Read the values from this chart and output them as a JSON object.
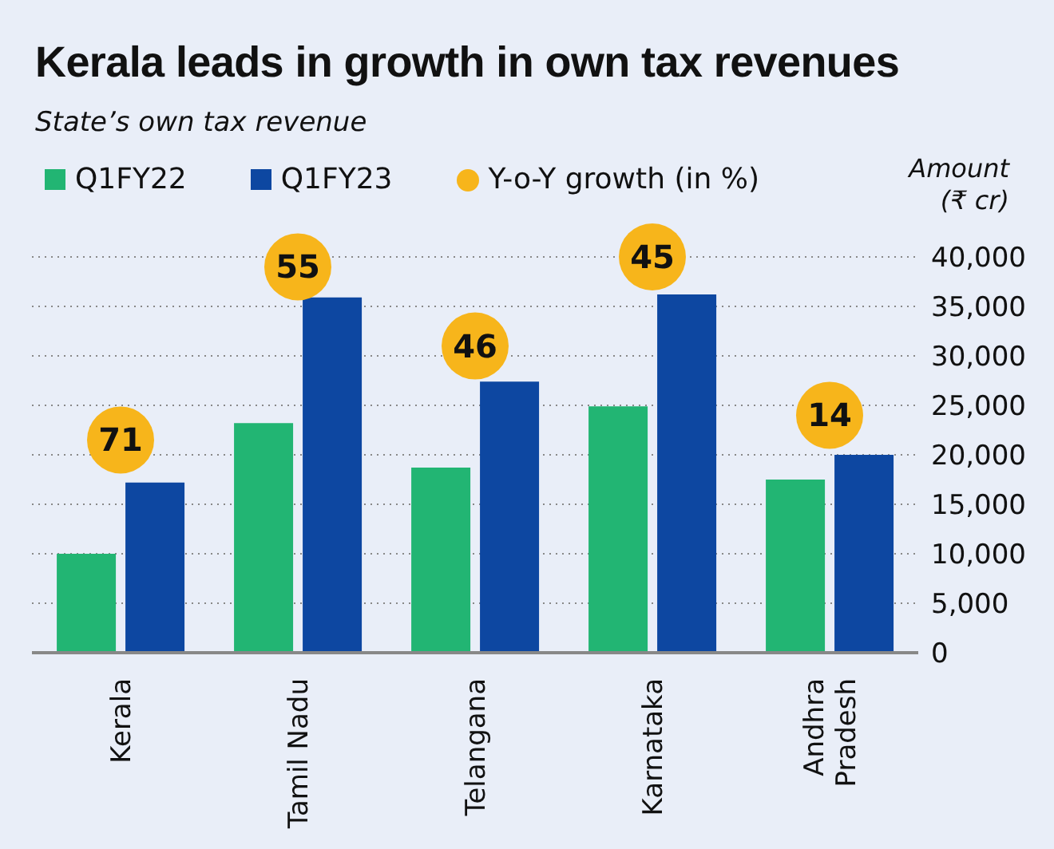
{
  "chart_data": {
    "type": "bar",
    "title": "Kerala leads in growth in own tax revenues",
    "subtitle": "State’s own tax revenue",
    "ylabel": "Amount (₹ cr)",
    "categories": [
      "Kerala",
      "Tamil Nadu",
      "Telangana",
      "Karnataka",
      "Andhra Pradesh"
    ],
    "series": [
      {
        "name": "Q1FY22",
        "color": "#22b573",
        "values": [
          10000,
          23200,
          18700,
          24900,
          17500
        ]
      },
      {
        "name": "Q1FY23",
        "color": "#0d47a1",
        "values": [
          17200,
          35900,
          27400,
          36200,
          20000
        ]
      }
    ],
    "annotations": [
      "Y-o-Y growth (in %)",
      {
        "text": "71",
        "x": "Kerala",
        "y": 21500
      },
      {
        "text": "55",
        "x": "Tamil Nadu",
        "y": 39000
      },
      {
        "text": "46",
        "x": "Telangana",
        "y": 31000
      },
      {
        "text": "45",
        "x": "Karnataka",
        "y": 40000
      },
      {
        "text": "14",
        "x": "Andhra Pradesh",
        "y": 24000
      }
    ],
    "ylim": [
      0,
      40000
    ],
    "yticks": [
      0,
      {
        "value": 5000,
        "label": "5,000"
      },
      {
        "value": 10000,
        "label": "10,000"
      },
      {
        "value": 15000,
        "label": "15,000"
      },
      {
        "value": 20000,
        "label": "20,000"
      },
      {
        "value": 25000,
        "label": "25,000"
      },
      {
        "value": 30000,
        "label": "30,000"
      },
      {
        "value": 35000,
        "label": "35,000"
      },
      {
        "value": 40000,
        "label": "40,000"
      }
    ],
    "grid": "y",
    "legend": "top left"
  }
}
